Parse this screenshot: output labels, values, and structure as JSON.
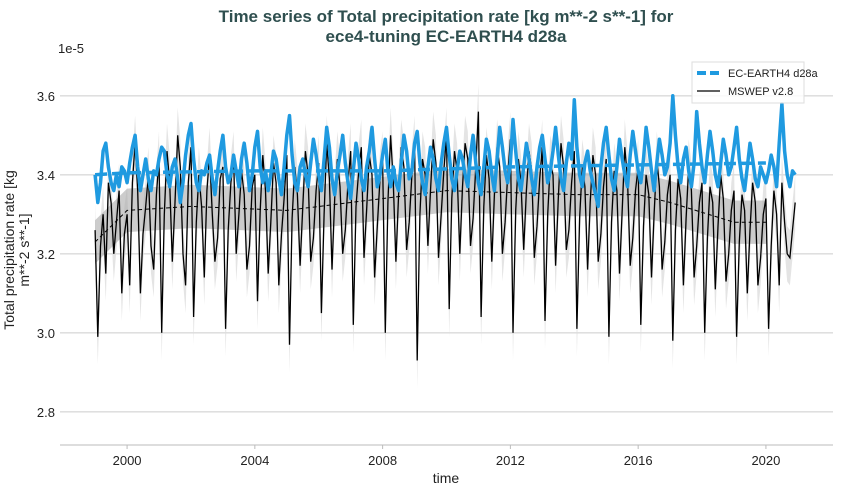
{
  "chart_data": {
    "type": "line",
    "title": [
      "Time series of Total precipitation rate [kg m**-2 s**-1] for",
      "ece4-tuning EC-EARTH4 d28a"
    ],
    "xlabel": "time",
    "ylabel": [
      "Total precipitation rate [kg",
      "m**-2 s**-1]"
    ],
    "y_offset_label": "1e-5",
    "xlim": [
      1997.9,
      2022.1
    ],
    "ylim": [
      2.716,
      3.716
    ],
    "xticks": [
      2000,
      2004,
      2008,
      2012,
      2016,
      2020
    ],
    "xtick_labels": [
      "2000",
      "2004",
      "2008",
      "2012",
      "2016",
      "2020"
    ],
    "yticks": [
      2.8,
      3.0,
      3.2,
      3.4,
      3.6
    ],
    "ytick_labels": [
      "2.8",
      "3.0",
      "3.2",
      "3.4",
      "3.6"
    ],
    "grid": "horizontal",
    "legend_position": "top-right",
    "start_year": 1999,
    "frequency": "monthly",
    "series": [
      {
        "name": "EC-EARTH4 d28a",
        "color": "#1f9ae0",
        "style": "thick",
        "values": [
          3.4,
          3.33,
          3.38,
          3.46,
          3.48,
          3.42,
          3.38,
          3.36,
          3.4,
          3.37,
          3.42,
          3.41,
          3.38,
          3.43,
          3.47,
          3.5,
          3.42,
          3.36,
          3.4,
          3.44,
          3.39,
          3.36,
          3.41,
          3.4,
          3.44,
          3.47,
          3.46,
          3.4,
          3.37,
          3.42,
          3.44,
          3.39,
          3.33,
          3.38,
          3.45,
          3.5,
          3.53,
          3.44,
          3.38,
          3.36,
          3.41,
          3.4,
          3.43,
          3.45,
          3.39,
          3.35,
          3.41,
          3.46,
          3.5,
          3.42,
          3.38,
          3.4,
          3.45,
          3.41,
          3.37,
          3.44,
          3.48,
          3.43,
          3.36,
          3.4,
          3.47,
          3.51,
          3.42,
          3.38,
          3.41,
          3.36,
          3.4,
          3.46,
          3.44,
          3.39,
          3.35,
          3.42,
          3.5,
          3.55,
          3.45,
          3.38,
          3.36,
          3.42,
          3.44,
          3.4,
          3.37,
          3.43,
          3.49,
          3.45,
          3.4,
          3.36,
          3.44,
          3.52,
          3.47,
          3.39,
          3.35,
          3.41,
          3.45,
          3.5,
          3.43,
          3.38,
          3.34,
          3.41,
          3.48,
          3.44,
          3.39,
          3.36,
          3.42,
          3.46,
          3.52,
          3.44,
          3.37,
          3.4,
          3.45,
          3.49,
          3.41,
          3.37,
          3.42,
          3.38,
          3.36,
          3.43,
          3.5,
          3.46,
          3.39,
          3.41,
          3.48,
          3.51,
          3.43,
          3.38,
          3.35,
          3.42,
          3.47,
          3.44,
          3.39,
          3.36,
          3.43,
          3.48,
          3.52,
          3.45,
          3.39,
          3.36,
          3.41,
          3.46,
          3.44,
          3.4,
          3.37,
          3.45,
          3.5,
          3.43,
          3.38,
          3.35,
          3.42,
          3.49,
          3.46,
          3.4,
          3.36,
          3.44,
          3.52,
          3.47,
          3.41,
          3.38,
          3.43,
          3.54,
          3.46,
          3.39,
          3.36,
          3.42,
          3.48,
          3.44,
          3.39,
          3.35,
          3.42,
          3.47,
          3.5,
          3.44,
          3.38,
          3.41,
          3.46,
          3.52,
          3.45,
          3.39,
          3.36,
          3.43,
          3.48,
          3.44,
          3.59,
          3.47,
          3.4,
          3.37,
          3.43,
          3.46,
          3.41,
          3.38,
          3.35,
          3.32,
          3.42,
          3.48,
          3.52,
          3.45,
          3.39,
          3.36,
          3.42,
          3.49,
          3.44,
          3.4,
          3.37,
          3.45,
          3.51,
          3.46,
          3.41,
          3.38,
          3.44,
          3.52,
          3.47,
          3.41,
          3.36,
          3.43,
          3.49,
          3.45,
          3.4,
          3.42,
          3.48,
          3.6,
          3.5,
          3.42,
          3.38,
          3.44,
          3.47,
          3.41,
          3.37,
          3.43,
          3.56,
          3.48,
          3.42,
          3.38,
          3.45,
          3.51,
          3.46,
          3.4,
          3.37,
          3.43,
          3.49,
          3.45,
          3.4,
          3.42,
          3.47,
          3.52,
          3.44,
          3.39,
          3.36,
          3.42,
          3.48,
          3.44,
          3.39,
          3.37,
          3.42,
          3.4,
          3.38,
          3.41,
          3.45,
          3.42,
          3.37,
          3.48,
          3.58,
          3.46,
          3.4,
          3.37,
          3.41,
          3.4
        ],
        "running_mean": {
          "years": [
            1999,
            2000,
            2004,
            2008,
            2012,
            2016,
            2020
          ],
          "values": [
            3.4,
            3.405,
            3.41,
            3.41,
            3.42,
            3.425,
            3.43
          ]
        }
      },
      {
        "name": "MSWEP v2.8",
        "color": "#000000",
        "style": "thin",
        "values": [
          3.26,
          2.99,
          3.22,
          3.3,
          3.15,
          3.38,
          3.33,
          3.2,
          3.28,
          3.36,
          3.1,
          3.25,
          3.3,
          3.12,
          3.38,
          3.48,
          3.36,
          3.1,
          3.25,
          3.32,
          3.4,
          3.22,
          3.16,
          3.35,
          3.44,
          3.0,
          3.3,
          3.46,
          3.38,
          3.18,
          3.33,
          3.5,
          3.42,
          3.2,
          3.12,
          3.38,
          3.47,
          3.04,
          3.28,
          3.4,
          3.32,
          3.14,
          3.36,
          3.45,
          3.3,
          3.18,
          3.24,
          3.39,
          3.42,
          3.01,
          3.26,
          3.38,
          3.44,
          3.2,
          3.3,
          3.41,
          3.35,
          3.16,
          3.22,
          3.37,
          3.4,
          3.08,
          3.31,
          3.45,
          3.36,
          3.15,
          3.28,
          3.43,
          3.38,
          3.12,
          3.25,
          3.34,
          3.45,
          2.97,
          3.29,
          3.42,
          3.35,
          3.17,
          3.32,
          3.46,
          3.4,
          3.18,
          3.24,
          3.36,
          3.43,
          3.05,
          3.3,
          3.48,
          3.39,
          3.16,
          3.34,
          3.44,
          3.37,
          3.2,
          3.26,
          3.38,
          3.46,
          3.02,
          3.32,
          3.41,
          3.47,
          3.19,
          3.31,
          3.45,
          3.4,
          3.14,
          3.27,
          3.39,
          3.44,
          3.0,
          3.33,
          3.5,
          3.38,
          3.18,
          3.35,
          3.47,
          3.42,
          3.21,
          3.28,
          3.4,
          3.48,
          2.93,
          3.3,
          3.44,
          3.4,
          3.22,
          3.36,
          3.49,
          3.43,
          3.19,
          3.3,
          3.41,
          3.5,
          3.06,
          3.34,
          3.46,
          3.41,
          3.2,
          3.37,
          3.48,
          3.44,
          3.22,
          3.29,
          3.42,
          3.56,
          3.04,
          3.32,
          3.45,
          3.39,
          3.18,
          3.35,
          3.47,
          3.42,
          3.2,
          3.28,
          3.4,
          3.49,
          3.0,
          3.31,
          3.44,
          3.38,
          3.21,
          3.36,
          3.46,
          3.41,
          3.19,
          3.27,
          3.39,
          3.47,
          3.03,
          3.3,
          3.43,
          3.4,
          3.17,
          3.34,
          3.48,
          3.42,
          3.21,
          3.26,
          3.38,
          3.46,
          3.01,
          3.29,
          3.42,
          3.37,
          3.16,
          3.33,
          3.45,
          3.4,
          3.18,
          3.25,
          3.37,
          3.44,
          2.99,
          3.28,
          3.41,
          3.36,
          3.15,
          3.31,
          3.47,
          3.39,
          3.17,
          3.24,
          3.36,
          3.42,
          3.02,
          3.27,
          3.4,
          3.35,
          3.14,
          3.3,
          3.44,
          3.37,
          3.16,
          3.23,
          3.35,
          3.4,
          2.98,
          3.26,
          3.39,
          3.34,
          3.12,
          3.29,
          3.42,
          3.36,
          3.14,
          3.22,
          3.33,
          3.38,
          3.0,
          3.24,
          3.37,
          3.33,
          3.11,
          3.27,
          3.4,
          3.34,
          3.13,
          3.2,
          3.31,
          3.36,
          2.99,
          3.23,
          3.35,
          3.31,
          3.1,
          3.26,
          3.38,
          3.33,
          3.12,
          3.19,
          3.3,
          3.34,
          3.01,
          3.22,
          3.36,
          3.3,
          3.12,
          3.38,
          3.28,
          3.2,
          3.19,
          3.26,
          3.33
        ],
        "running_mean": {
          "years": [
            1999,
            2000,
            2002,
            2005,
            2007,
            2010,
            2014,
            2016,
            2017,
            2019,
            2020
          ],
          "values": [
            3.23,
            3.31,
            3.32,
            3.31,
            3.33,
            3.36,
            3.35,
            3.35,
            3.33,
            3.28,
            3.28
          ]
        },
        "running_mean_band": 0.055,
        "monthly_band": 0.07
      }
    ]
  }
}
